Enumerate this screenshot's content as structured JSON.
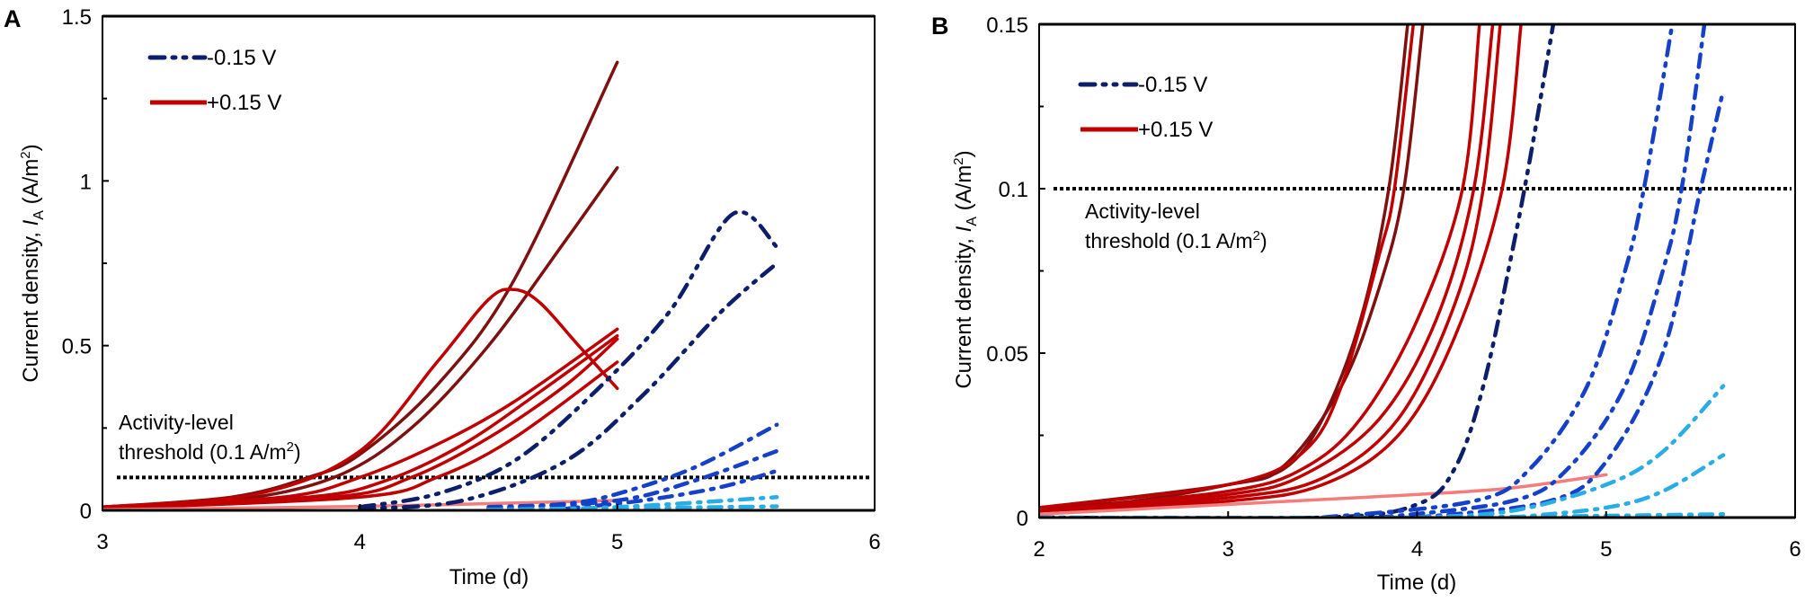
{
  "chart_data": [
    {
      "panel_label": "A",
      "type": "line",
      "xlabel": "Time (d)",
      "ylabel": {
        "prefix": "Current density, ",
        "symbol": "I",
        "subscript": "A",
        "unit_open": " (A/m",
        "unit_sup": "2",
        "unit_close": ")"
      },
      "xlim": [
        3,
        6
      ],
      "ylim": [
        0,
        1.5
      ],
      "xticks": [
        "3",
        "4",
        "5",
        "6"
      ],
      "yticks": [
        "0",
        "0.5",
        "1",
        "1.5"
      ],
      "ytick_values": [
        0,
        0.5,
        1,
        1.5
      ],
      "xtick_values": [
        3,
        4,
        5,
        6
      ],
      "minor_yticks": [
        0.25,
        0.75,
        1.25
      ],
      "legend": [
        {
          "label": "-0.15 V",
          "style": "dashdotdot",
          "color": "#0D1F6B"
        },
        {
          "label": "+0.15 V",
          "style": "solid",
          "color": "#C00000"
        }
      ],
      "legend_position": "top-left",
      "threshold": {
        "value": 0.1,
        "line1": "Activity-level",
        "line2_prefix": "threshold (0.1 A/m",
        "line2_sup": "2",
        "line2_suffix": ")"
      },
      "series": [
        {
          "group": "+0.15 V",
          "color": "#7F1010",
          "style": "solid",
          "x": [
            3,
            3.5,
            3.8,
            4,
            4.3,
            4.6,
            5
          ],
          "y": [
            0.01,
            0.04,
            0.1,
            0.17,
            0.38,
            0.7,
            1.36
          ]
        },
        {
          "group": "+0.15 V",
          "color": "#7F1010",
          "style": "solid",
          "x": [
            3,
            3.5,
            3.9,
            4.2,
            4.5,
            4.8,
            5
          ],
          "y": [
            0.01,
            0.03,
            0.1,
            0.25,
            0.5,
            0.82,
            1.04
          ]
        },
        {
          "group": "+0.15 V",
          "color": "#C00000",
          "style": "solid",
          "x": [
            3,
            3.6,
            4,
            4.3,
            4.5,
            4.6,
            4.7,
            4.85,
            5
          ],
          "y": [
            0.01,
            0.05,
            0.18,
            0.45,
            0.64,
            0.67,
            0.63,
            0.5,
            0.37
          ]
        },
        {
          "group": "+0.15 V",
          "color": "#C00000",
          "style": "solid",
          "x": [
            3,
            3.7,
            4,
            4.3,
            4.6,
            5
          ],
          "y": [
            0.01,
            0.04,
            0.1,
            0.2,
            0.33,
            0.55
          ]
        },
        {
          "group": "+0.15 V",
          "color": "#C00000",
          "style": "solid",
          "x": [
            3,
            3.8,
            4.1,
            4.4,
            4.7,
            5
          ],
          "y": [
            0.005,
            0.04,
            0.09,
            0.2,
            0.36,
            0.53
          ]
        },
        {
          "group": "+0.15 V",
          "color": "#C00000",
          "style": "solid",
          "x": [
            3,
            3.9,
            4.2,
            4.5,
            4.8,
            5
          ],
          "y": [
            0.005,
            0.04,
            0.1,
            0.22,
            0.38,
            0.52
          ]
        },
        {
          "group": "+0.15 V",
          "color": "#C00000",
          "style": "solid",
          "x": [
            3,
            4,
            4.3,
            4.6,
            5
          ],
          "y": [
            0.005,
            0.04,
            0.1,
            0.22,
            0.45
          ]
        },
        {
          "group": "+0.15 V",
          "color": "#F47C7C",
          "style": "solid",
          "x": [
            3,
            4,
            5
          ],
          "y": [
            0.002,
            0.012,
            0.03
          ]
        },
        {
          "group": "-0.15 V",
          "color": "#0D1F6B",
          "style": "dashdotdot",
          "x": [
            4,
            4.3,
            4.6,
            4.9,
            5.2,
            5.45,
            5.62
          ],
          "y": [
            0.01,
            0.05,
            0.15,
            0.35,
            0.6,
            0.9,
            0.8
          ]
        },
        {
          "group": "-0.15 V",
          "color": "#0D1F6B",
          "style": "dashdotdot",
          "x": [
            4,
            4.4,
            4.8,
            5.1,
            5.4,
            5.62
          ],
          "y": [
            0.005,
            0.03,
            0.15,
            0.35,
            0.6,
            0.75
          ]
        },
        {
          "group": "-0.15 V",
          "color": "#1540C8",
          "style": "dashdot",
          "x": [
            4.5,
            4.8,
            5,
            5.3,
            5.62
          ],
          "y": [
            0.01,
            0.02,
            0.05,
            0.13,
            0.26
          ]
        },
        {
          "group": "-0.15 V",
          "color": "#1540C8",
          "style": "dashdot",
          "x": [
            4.5,
            5,
            5.3,
            5.62
          ],
          "y": [
            0.005,
            0.03,
            0.09,
            0.18
          ]
        },
        {
          "group": "-0.15 V",
          "color": "#1540C8",
          "style": "dashdot",
          "x": [
            4.8,
            5.1,
            5.4,
            5.62
          ],
          "y": [
            0.005,
            0.03,
            0.07,
            0.12
          ]
        },
        {
          "group": "-0.15 V",
          "color": "#2AADE5",
          "style": "dashdot",
          "x": [
            4.5,
            5,
            5.62
          ],
          "y": [
            0.002,
            0.01,
            0.04
          ]
        },
        {
          "group": "-0.15 V",
          "color": "#2AADE5",
          "style": "dashdot",
          "x": [
            4.5,
            5.62
          ],
          "y": [
            0.001,
            0.012
          ]
        }
      ]
    },
    {
      "panel_label": "B",
      "type": "line",
      "xlabel": "Time (d)",
      "ylabel": {
        "prefix": "Current density, ",
        "symbol": "I",
        "subscript": "A",
        "unit_open": " (A/m",
        "unit_sup": "2",
        "unit_close": ")"
      },
      "xlim": [
        2,
        6
      ],
      "ylim": [
        0,
        0.15
      ],
      "xticks": [
        "2",
        "3",
        "4",
        "5",
        "6"
      ],
      "yticks": [
        "0",
        "0.05",
        "0.1",
        "0.15"
      ],
      "ytick_values": [
        0,
        0.05,
        0.1,
        0.15
      ],
      "xtick_values": [
        2,
        3,
        4,
        5,
        6
      ],
      "minor_yticks": [
        0.025,
        0.075,
        0.125
      ],
      "legend": [
        {
          "label": "-0.15 V",
          "style": "dashdotdot",
          "color": "#0D1F6B"
        },
        {
          "label": "+0.15 V",
          "style": "solid",
          "color": "#C00000"
        }
      ],
      "legend_position": "top-left",
      "threshold": {
        "value": 0.1,
        "line1": "Activity-level",
        "line2_prefix": "threshold (0.1 A/m",
        "line2_sup": "2",
        "line2_suffix": ")"
      },
      "series": [
        {
          "group": "+0.15 V",
          "color": "#7F1010",
          "style": "solid",
          "x": [
            2,
            2.5,
            3,
            3.3,
            3.5,
            3.7,
            3.85,
            3.95
          ],
          "y": [
            0.003,
            0.005,
            0.01,
            0.015,
            0.03,
            0.06,
            0.1,
            0.15
          ]
        },
        {
          "group": "+0.15 V",
          "color": "#7F1010",
          "style": "solid",
          "x": [
            2,
            3,
            3.3,
            3.6,
            3.8,
            3.93,
            4.03
          ],
          "y": [
            0.003,
            0.01,
            0.016,
            0.04,
            0.07,
            0.1,
            0.15
          ]
        },
        {
          "group": "+0.15 V",
          "color": "#C00000",
          "style": "solid",
          "x": [
            2,
            3,
            3.4,
            3.6,
            3.8,
            3.88,
            3.98
          ],
          "y": [
            0.003,
            0.01,
            0.02,
            0.04,
            0.08,
            0.1,
            0.15
          ]
        },
        {
          "group": "+0.15 V",
          "color": "#C00000",
          "style": "solid",
          "x": [
            2,
            3,
            3.4,
            3.7,
            4,
            4.24,
            4.33
          ],
          "y": [
            0.002,
            0.008,
            0.015,
            0.03,
            0.06,
            0.1,
            0.15
          ]
        },
        {
          "group": "+0.15 V",
          "color": "#C00000",
          "style": "solid",
          "x": [
            2,
            3,
            3.4,
            3.8,
            4.1,
            4.3,
            4.4
          ],
          "y": [
            0.002,
            0.007,
            0.013,
            0.03,
            0.06,
            0.1,
            0.15
          ]
        },
        {
          "group": "+0.15 V",
          "color": "#C00000",
          "style": "solid",
          "x": [
            2,
            3,
            3.5,
            3.9,
            4.2,
            4.35,
            4.44
          ],
          "y": [
            0.002,
            0.006,
            0.012,
            0.03,
            0.065,
            0.1,
            0.15
          ]
        },
        {
          "group": "+0.15 V",
          "color": "#C00000",
          "style": "solid",
          "x": [
            2,
            3,
            3.5,
            3.9,
            4.2,
            4.45,
            4.55
          ],
          "y": [
            0.002,
            0.005,
            0.01,
            0.025,
            0.055,
            0.1,
            0.15
          ]
        },
        {
          "group": "+0.15 V",
          "color": "#F47C7C",
          "style": "solid",
          "x": [
            2,
            3,
            4,
            4.5,
            5
          ],
          "y": [
            0.001,
            0.004,
            0.007,
            0.009,
            0.013
          ]
        },
        {
          "group": "-0.15 V",
          "color": "#0D1F6B",
          "style": "dashdotdot",
          "x": [
            2,
            3.5,
            4,
            4.2,
            4.35,
            4.5,
            4.6,
            4.72
          ],
          "y": [
            0,
            0,
            0.004,
            0.015,
            0.04,
            0.08,
            0.11,
            0.15
          ]
        },
        {
          "group": "-0.15 V",
          "color": "#1540C8",
          "style": "dashdotdot",
          "x": [
            3.5,
            4.3,
            4.6,
            4.9,
            5.1,
            5.2,
            5.35
          ],
          "y": [
            0,
            0.005,
            0.015,
            0.04,
            0.075,
            0.1,
            0.15
          ]
        },
        {
          "group": "-0.15 V",
          "color": "#1540C8",
          "style": "dashdot",
          "x": [
            3.8,
            4.5,
            4.8,
            5.1,
            5.3,
            5.4,
            5.52
          ],
          "y": [
            0,
            0.005,
            0.015,
            0.04,
            0.075,
            0.1,
            0.15
          ]
        },
        {
          "group": "-0.15 V",
          "color": "#1540C8",
          "style": "dashdot",
          "x": [
            4,
            4.7,
            5,
            5.3,
            5.5,
            5.62
          ],
          "y": [
            0,
            0.005,
            0.017,
            0.05,
            0.1,
            0.13
          ]
        },
        {
          "group": "-0.15 V",
          "color": "#2AADE5",
          "style": "dashdot",
          "x": [
            4,
            4.5,
            5,
            5.3,
            5.62
          ],
          "y": [
            0,
            0.002,
            0.01,
            0.02,
            0.04
          ]
        },
        {
          "group": "-0.15 V",
          "color": "#2AADE5",
          "style": "dashdot",
          "x": [
            4.5,
            5,
            5.3,
            5.62
          ],
          "y": [
            0,
            0.003,
            0.008,
            0.019
          ]
        },
        {
          "group": "-0.15 V",
          "color": "#2AADE5",
          "style": "dashdot",
          "x": [
            2,
            4,
            5.62
          ],
          "y": [
            0,
            0,
            0.001
          ]
        }
      ]
    }
  ]
}
